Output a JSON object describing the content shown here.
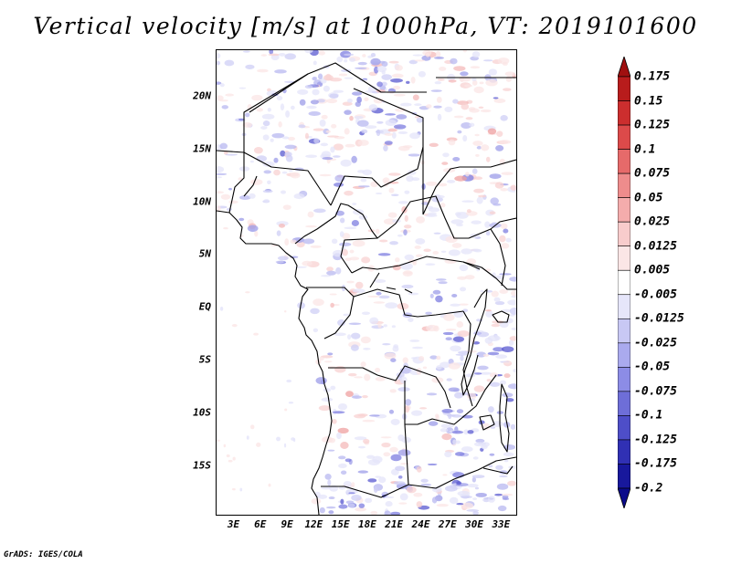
{
  "title": "Vertical velocity [m/s] at 1000hPa, VT: 2019101600",
  "credit": "GrADS: IGES/COLA",
  "map": {
    "lat_labels": [
      "20N",
      "15N",
      "10N",
      "5N",
      "EQ",
      "5S",
      "10S",
      "15S"
    ],
    "lat_values": [
      20,
      15,
      10,
      5,
      0,
      -5,
      -10,
      -15
    ],
    "lon_labels": [
      "3E",
      "6E",
      "9E",
      "12E",
      "15E",
      "18E",
      "21E",
      "24E",
      "27E",
      "30E",
      "33E"
    ],
    "lon_values": [
      3,
      6,
      9,
      12,
      15,
      18,
      21,
      24,
      27,
      30,
      33
    ]
  },
  "colorbar": {
    "labels": [
      "0.175",
      "0.15",
      "0.125",
      "0.1",
      "0.075",
      "0.05",
      "0.025",
      "0.0125",
      "0.005",
      "-0.005",
      "-0.0125",
      "-0.025",
      "-0.05",
      "-0.075",
      "-0.1",
      "-0.125",
      "-0.175",
      "-0.2"
    ],
    "colors": [
      "#a01010",
      "#b81c1c",
      "#cc2e2e",
      "#dc4a4a",
      "#e66a6a",
      "#ee8c8c",
      "#f4acac",
      "#f8cccc",
      "#fbe6e6",
      "#ffffff",
      "#e6e6fa",
      "#c8c8f4",
      "#aaaaee",
      "#8c8ce6",
      "#6e6ed8",
      "#4e4ec8",
      "#3030b4",
      "#18189c",
      "#0a0a8a"
    ],
    "top_arrow_color": "#a01010",
    "bottom_arrow_color": "#0a0a8a"
  }
}
